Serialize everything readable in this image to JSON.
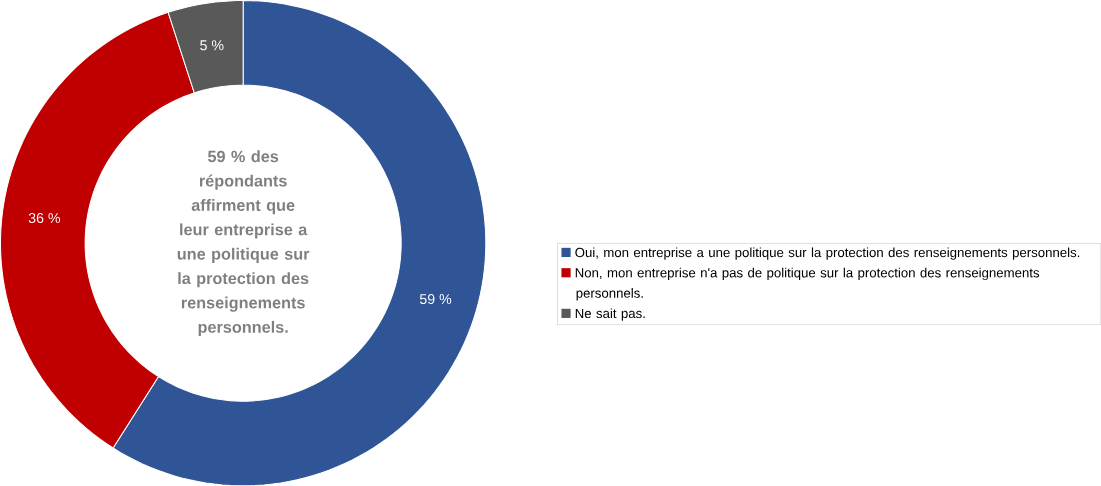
{
  "chart_data": {
    "type": "donut",
    "categories": [
      "Oui, mon entreprise a une politique sur la protection des renseignements personnels.",
      "Non, mon entreprise n'a pas de politique sur la protection des renseignements personnels.",
      "Ne sait pas."
    ],
    "values": [
      59,
      36,
      5
    ],
    "value_labels": [
      "59 %",
      "36 %",
      "5 %"
    ],
    "colors": [
      "#2f5597",
      "#c00000",
      "#595959"
    ],
    "annotations": [
      "59 % des répondants affirment que leur entreprise a une politique sur la protection des renseignements personnels."
    ],
    "legend": "right"
  }
}
